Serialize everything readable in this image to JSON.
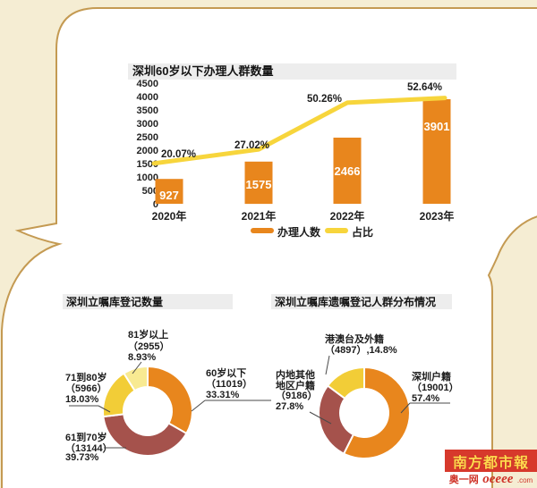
{
  "colors": {
    "background": "#f5edd3",
    "panel": "#ffffff",
    "panel_border": "#c49a52",
    "title_strip": "#ededed",
    "bar_orange": "#e8861d",
    "line_yellow": "#f7d53c",
    "maroon": "#a5524c",
    "yellow": "#f2cd37",
    "pale_yellow": "#f8ea92",
    "logo_red": "#d7392c",
    "logo_text": "#ffd94e"
  },
  "chart_data": [
    {
      "type": "bar",
      "title": "深圳60岁以下办理人群数量",
      "categories": [
        "2020年",
        "2021年",
        "2022年",
        "2023年"
      ],
      "series": [
        {
          "name": "办理人数",
          "type": "bar",
          "values": [
            927,
            1575,
            2466,
            3901
          ],
          "color": "#e8861d"
        },
        {
          "name": "占比",
          "type": "line",
          "values": [
            20.07,
            27.02,
            50.26,
            52.64
          ],
          "labels": [
            "20.07%",
            "27.02%",
            "50.26%",
            "52.64%"
          ],
          "color": "#f7d53c"
        }
      ],
      "y_ticks": [
        4500,
        4000,
        3500,
        3000,
        2500,
        2000,
        1500,
        1000,
        500,
        0
      ],
      "ylim": [
        0,
        4500
      ],
      "y2lim": [
        0,
        60
      ],
      "grid": false,
      "legend": [
        "办理人数",
        "占比"
      ],
      "legend_position": "bottom"
    },
    {
      "type": "pie",
      "title": "深圳立嘱库登记数量",
      "segments": [
        {
          "label": "60岁以下",
          "value": 11019,
          "pct": 33.31,
          "color": "#e8861d",
          "label_lines": [
            "60岁以下",
            "（11019）",
            "33.31%"
          ]
        },
        {
          "label": "61到70岁",
          "value": 13144,
          "pct": 39.73,
          "color": "#a5524c",
          "label_lines": [
            "61到70岁",
            "（13144）",
            "39.73%"
          ]
        },
        {
          "label": "71到80岁",
          "value": 5966,
          "pct": 18.03,
          "color": "#f2cd37",
          "label_lines": [
            "71到80岁",
            "（5966）",
            "18.03%"
          ]
        },
        {
          "label": "81岁以上",
          "value": 2955,
          "pct": 8.93,
          "color": "#f8ea92",
          "label_lines": [
            "81岁以上",
            "（2955）",
            "8.93%"
          ]
        }
      ]
    },
    {
      "type": "pie",
      "title": "深圳立嘱库遗嘱登记人群分布情况",
      "segments": [
        {
          "label": "深圳户籍",
          "value": 19001,
          "pct": 57.4,
          "color": "#e8861d",
          "label_lines": [
            "深圳户籍",
            "（19001）",
            "57.4%"
          ]
        },
        {
          "label": "内地其他地区户籍",
          "value": 9186,
          "pct": 27.8,
          "color": "#a5524c",
          "label_lines": [
            "内地其他",
            "地区户籍",
            "（9186）",
            "27.8%"
          ]
        },
        {
          "label": "港澳台及外籍",
          "value": 4897,
          "pct": 14.8,
          "color": "#f2cd37",
          "label_lines": [
            "港澳台及外籍",
            "（4897）,14.8%"
          ]
        }
      ]
    }
  ],
  "logo": {
    "paper": "南方都市報",
    "site": "奥一网",
    "brand": "oeeee",
    "domain": ".com"
  }
}
